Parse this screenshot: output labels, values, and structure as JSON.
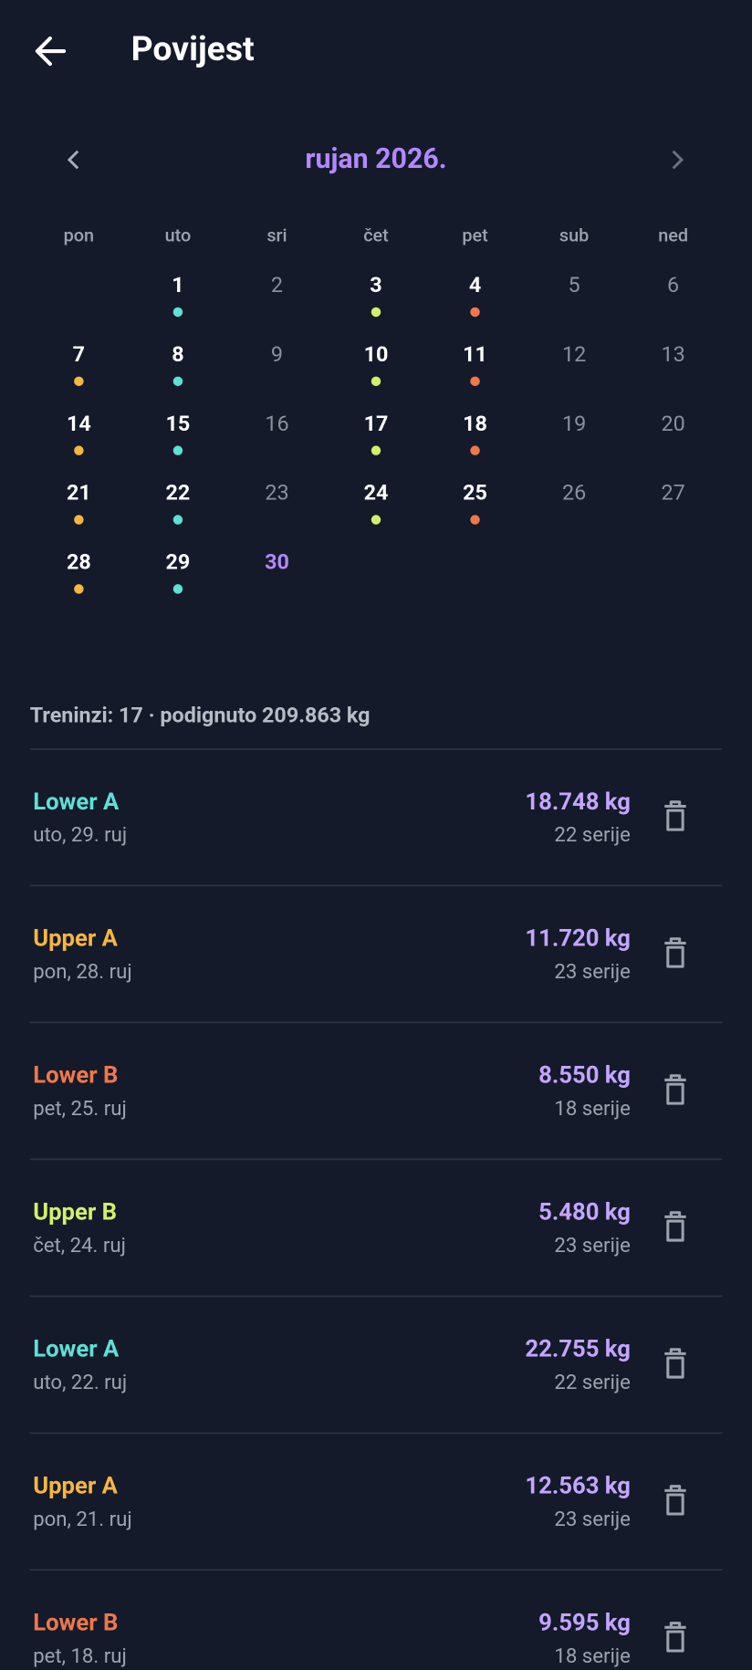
{
  "header": {
    "title": "Povijest"
  },
  "calendar": {
    "month": "rujan 2026.",
    "weekdays": [
      "pon",
      "uto",
      "sri",
      "čet",
      "pet",
      "sub",
      "ned"
    ],
    "weeks": [
      [
        null,
        {
          "label": 1,
          "dot": "#5ee0d6"
        },
        {
          "label": 2
        },
        {
          "label": 3,
          "dot": "#d4f06a"
        },
        {
          "label": 4,
          "dot": "#f0784a"
        },
        {
          "label": 5
        },
        {
          "label": 6
        }
      ],
      [
        {
          "label": 7,
          "dot": "#f5b642"
        },
        {
          "label": 8,
          "dot": "#5ee0d6"
        },
        {
          "label": 9
        },
        {
          "label": 10,
          "dot": "#d4f06a"
        },
        {
          "label": 11,
          "dot": "#f0784a"
        },
        {
          "label": 12
        },
        {
          "label": 13
        }
      ],
      [
        {
          "label": 14,
          "dot": "#f5b642"
        },
        {
          "label": 15,
          "dot": "#5ee0d6"
        },
        {
          "label": 16
        },
        {
          "label": 17,
          "dot": "#d4f06a"
        },
        {
          "label": 18,
          "dot": "#f0784a"
        },
        {
          "label": 19
        },
        {
          "label": 20
        }
      ],
      [
        {
          "label": 21,
          "dot": "#f5b642"
        },
        {
          "label": 22,
          "dot": "#5ee0d6"
        },
        {
          "label": 23
        },
        {
          "label": 24,
          "dot": "#d4f06a"
        },
        {
          "label": 25,
          "dot": "#f0784a"
        },
        {
          "label": 26
        },
        {
          "label": 27
        }
      ],
      [
        {
          "label": 28,
          "dot": "#f5b642"
        },
        {
          "label": 29,
          "dot": "#5ee0d6"
        },
        {
          "label": 30,
          "today": true
        }
      ]
    ]
  },
  "summary": "Treninzi: 17 · podignuto 209.863 kg",
  "workouts": [
    {
      "name": "Lower A",
      "color": "#5ee0d6",
      "date": "uto, 29. ruj",
      "weight": "18.748 kg",
      "sets": "22 serije"
    },
    {
      "name": "Upper A",
      "color": "#f5b642",
      "date": "pon, 28. ruj",
      "weight": "11.720 kg",
      "sets": "23 serije"
    },
    {
      "name": "Lower B",
      "color": "#f0784a",
      "date": "pet, 25. ruj",
      "weight": "8.550 kg",
      "sets": "18 serije"
    },
    {
      "name": "Upper B",
      "color": "#d4f06a",
      "date": "čet, 24. ruj",
      "weight": "5.480 kg",
      "sets": "23 serije"
    },
    {
      "name": "Lower A",
      "color": "#5ee0d6",
      "date": "uto, 22. ruj",
      "weight": "22.755 kg",
      "sets": "22 serije"
    },
    {
      "name": "Upper A",
      "color": "#f5b642",
      "date": "pon, 21. ruj",
      "weight": "12.563 kg",
      "sets": "23 serije"
    },
    {
      "name": "Lower B",
      "color": "#f0784a",
      "date": "pet, 18. ruj",
      "weight": "9.595 kg",
      "sets": "18 serije"
    }
  ]
}
